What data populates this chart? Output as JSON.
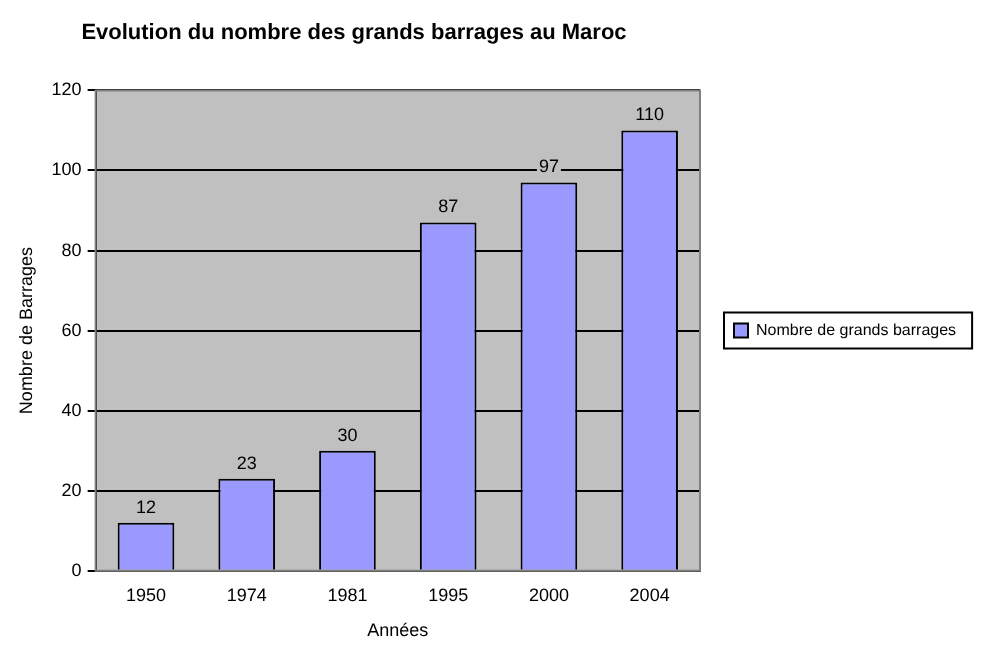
{
  "chart_data": {
    "type": "bar",
    "title": "Evolution du nombre des grands barrages au Maroc",
    "xlabel": "Années",
    "ylabel": "Nombre de Barrages",
    "categories": [
      "1950",
      "1974",
      "1981",
      "1995",
      "2000",
      "2004"
    ],
    "series": [
      {
        "name": "Nombre de grands barrages",
        "color": "#9999ff",
        "values": [
          12,
          23,
          30,
          87,
          97,
          110
        ]
      }
    ],
    "ylim": [
      0,
      120
    ],
    "yticks": [
      0,
      20,
      40,
      60,
      80,
      100,
      120
    ],
    "grid": "y",
    "legend": "right",
    "data_labels": true
  }
}
